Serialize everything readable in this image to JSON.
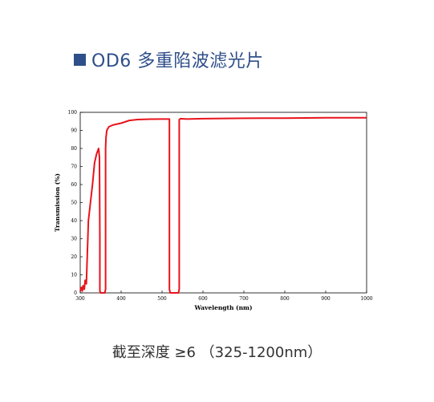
{
  "heading": {
    "text": "OD6 多重陷波滤光片",
    "color": "#2f4f8a"
  },
  "caption": "截至深度 ≥6 （325-1200nm）",
  "chart_data": {
    "type": "line",
    "title": "",
    "xlabel": "Wavelength (nm)",
    "ylabel": "Transmission (%)",
    "xlim": [
      300,
      1000
    ],
    "ylim": [
      0,
      100
    ],
    "xticks": [
      300,
      400,
      500,
      600,
      700,
      800,
      900,
      1000
    ],
    "yticks": [
      0,
      10,
      20,
      30,
      40,
      50,
      60,
      70,
      80,
      90,
      100
    ],
    "grid": false,
    "legend": "none",
    "series": [
      {
        "color": "#e8141c",
        "x": [
          300,
          303,
          305,
          307,
          310,
          312,
          315,
          320,
          325,
          330,
          335,
          340,
          345,
          347,
          348,
          348,
          350,
          355,
          360,
          362,
          362,
          363,
          365,
          370,
          380,
          400,
          420,
          440,
          470,
          500,
          515,
          518,
          518,
          520,
          540,
          542,
          542,
          545,
          560,
          600,
          650,
          700,
          750,
          800,
          850,
          900,
          950,
          1000
        ],
        "y": [
          1,
          3,
          1,
          4,
          2,
          7,
          5,
          40,
          50,
          60,
          72,
          77,
          80,
          75,
          30,
          1,
          0,
          0,
          0,
          2,
          80,
          86,
          90,
          92,
          93,
          94,
          95.5,
          96,
          96.2,
          96.3,
          96.3,
          96.3,
          2,
          0,
          0,
          2,
          96,
          96.5,
          96.3,
          96.5,
          96.6,
          96.7,
          96.8,
          96.8,
          96.9,
          97,
          97,
          97
        ]
      }
    ]
  }
}
